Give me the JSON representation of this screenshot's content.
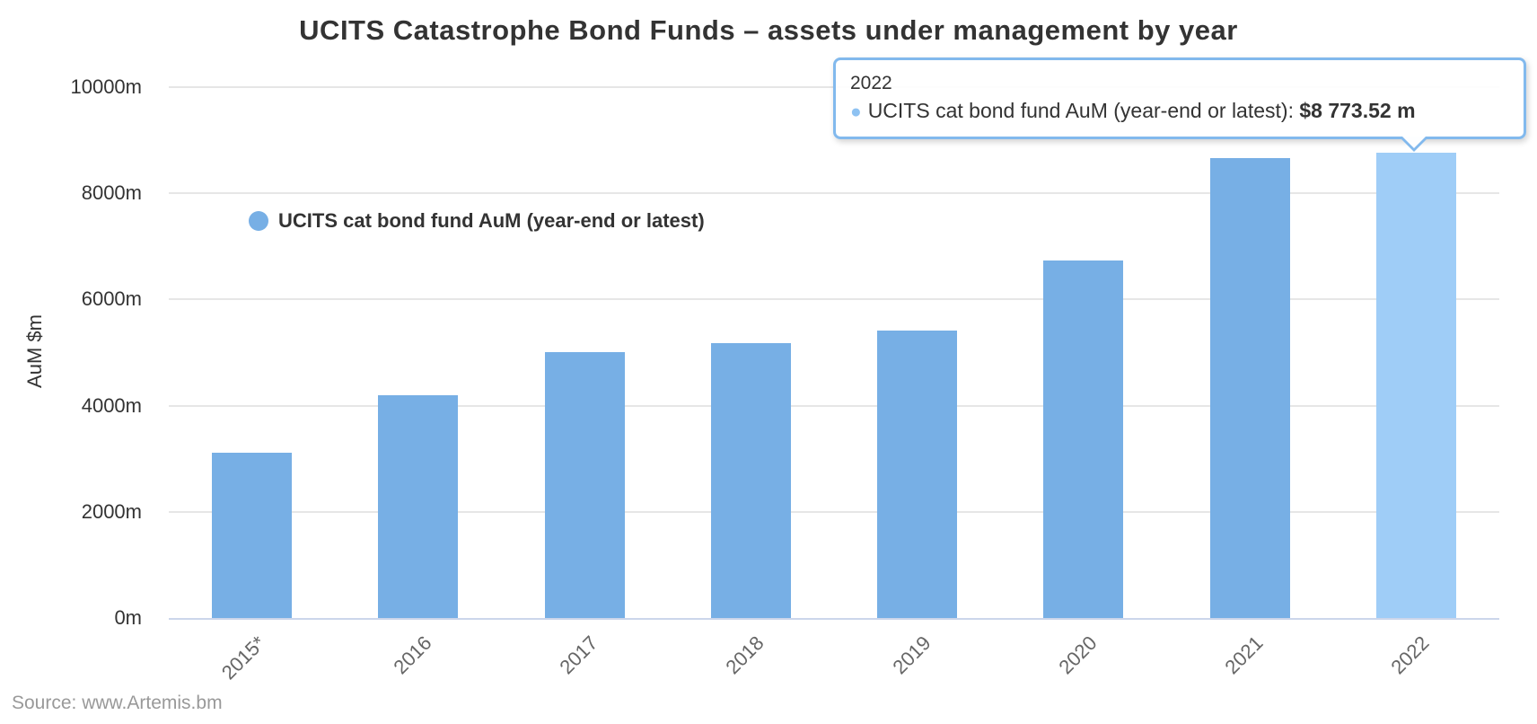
{
  "title": "UCITS Catastrophe Bond Funds – assets under management by year",
  "source_credit": "Source: www.Artemis.bm",
  "legend": {
    "label": "UCITS cat bond fund AuM (year-end or latest)"
  },
  "y_axis": {
    "title": "AuM $m",
    "ticks": [
      "10000m",
      "8000m",
      "6000m",
      "4000m",
      "2000m",
      "0m"
    ]
  },
  "x_axis": {
    "ticks": [
      "2015*",
      "2016",
      "2017",
      "2018",
      "2019",
      "2020",
      "2021",
      "2022"
    ]
  },
  "tooltip": {
    "year": "2022",
    "series_label": "UCITS cat bond fund AuM (year-end or latest):",
    "value": "$8 773.52 m"
  },
  "colors": {
    "bar": "#77afe5",
    "bar_highlighted": "#9fcdf7",
    "gridline": "#e6e6e6",
    "axis_line": "#ccd6eb",
    "tooltip_border": "#82b9ed",
    "tooltip_bullet": "#8ec2f2",
    "text_dark": "#333333",
    "x_label": "#666666",
    "source_text": "#999999"
  },
  "chart_data": {
    "type": "bar",
    "title": "UCITS Catastrophe Bond Funds – assets under management by year",
    "categories": [
      "2015*",
      "2016",
      "2017",
      "2018",
      "2019",
      "2020",
      "2021",
      "2022"
    ],
    "series": [
      {
        "name": "UCITS cat bond fund AuM (year-end or latest)",
        "values": [
          3110,
          4200,
          5010,
          5180,
          5410,
          6730,
          8660,
          8773.52
        ]
      }
    ],
    "xlabel": "",
    "ylabel": "AuM $m",
    "ylim": [
      0,
      10000
    ],
    "y_tick_step": 2000,
    "grid": true,
    "legend_position": "top-left-inside",
    "highlighted_index": 7,
    "tooltip_point": {
      "category": "2022",
      "value": 8773.52,
      "formatted": "$8 773.52 m"
    }
  }
}
